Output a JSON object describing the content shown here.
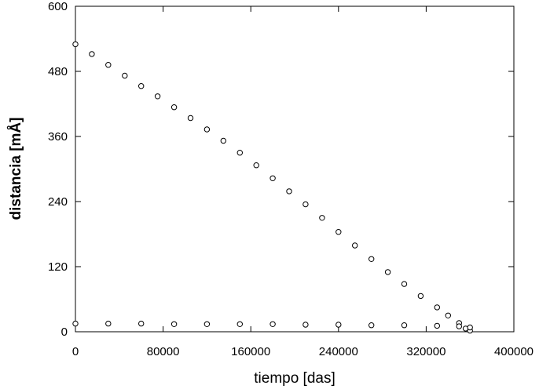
{
  "chart_data": {
    "type": "scatter",
    "title": "",
    "xlabel": "tiempo [das]",
    "ylabel": "distancia [mÅ]",
    "xlim": [
      0,
      400000
    ],
    "ylim": [
      0,
      600
    ],
    "xticks": [
      0,
      80000,
      160000,
      240000,
      320000,
      400000
    ],
    "yticks": [
      0,
      120,
      240,
      360,
      480,
      600
    ],
    "xtick_labels": [
      "0",
      "80000",
      "160000",
      "240000",
      "320000",
      "400000"
    ],
    "ytick_labels": [
      "0",
      "120",
      "240",
      "360",
      "480",
      "600"
    ],
    "grid": false,
    "legend": "none",
    "marker": "open-circle",
    "series": [
      {
        "x": [
          0,
          15000,
          30000,
          45000,
          60000,
          75000,
          90000,
          105000,
          120000,
          135000,
          150000,
          165000,
          180000,
          195000,
          210000,
          225000,
          240000,
          255000,
          270000,
          285000,
          300000,
          315000,
          330000,
          340000,
          350000,
          356000,
          360000
        ],
        "y": [
          530,
          512,
          492,
          472,
          453,
          434,
          414,
          394,
          373,
          352,
          330,
          307,
          283,
          259,
          235,
          210,
          184,
          159,
          134,
          110,
          88,
          66,
          45,
          30,
          16,
          6,
          2
        ]
      },
      {
        "x": [
          0,
          30000,
          60000,
          90000,
          120000,
          150000,
          180000,
          210000,
          240000,
          270000,
          300000,
          330000,
          350000,
          360000
        ],
        "y": [
          15,
          15,
          15,
          14,
          14,
          14,
          14,
          13,
          13,
          12,
          12,
          11,
          10,
          8
        ]
      }
    ]
  }
}
